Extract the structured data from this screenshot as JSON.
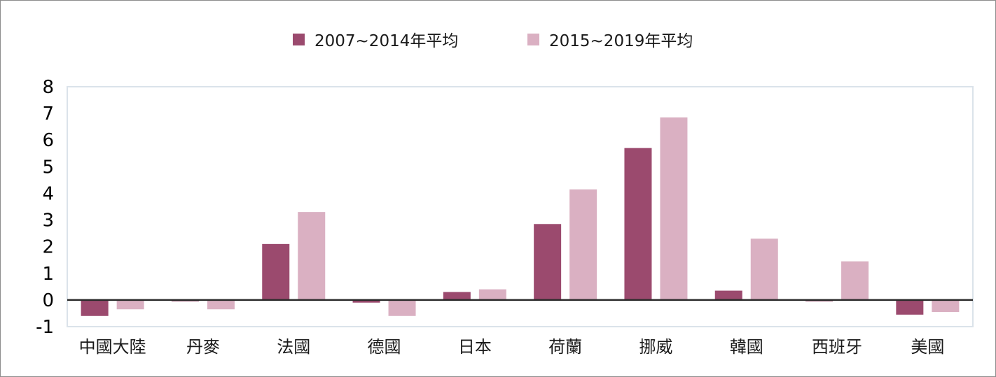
{
  "chart_data": {
    "type": "bar",
    "categories": [
      "中國大陸",
      "丹麥",
      "法國",
      "德國",
      "日本",
      "荷蘭",
      "挪威",
      "韓國",
      "西班牙",
      "美國"
    ],
    "series": [
      {
        "name": "2007~2014年平均",
        "color": "#9b4a6e",
        "values": [
          -0.6,
          -0.05,
          2.1,
          -0.1,
          0.3,
          2.85,
          5.7,
          0.35,
          -0.05,
          -0.55
        ]
      },
      {
        "name": "2015~2019年平均",
        "color": "#dab0c2",
        "values": [
          -0.35,
          -0.35,
          3.3,
          -0.6,
          0.4,
          4.15,
          6.85,
          2.3,
          1.45,
          -0.45
        ]
      }
    ],
    "yticks": [
      "8",
      "7",
      "6",
      "5",
      "4",
      "3",
      "2",
      "1",
      "0",
      "-1"
    ],
    "ylim": [
      -1,
      8
    ],
    "legend_position": "top-center",
    "grid": false
  }
}
